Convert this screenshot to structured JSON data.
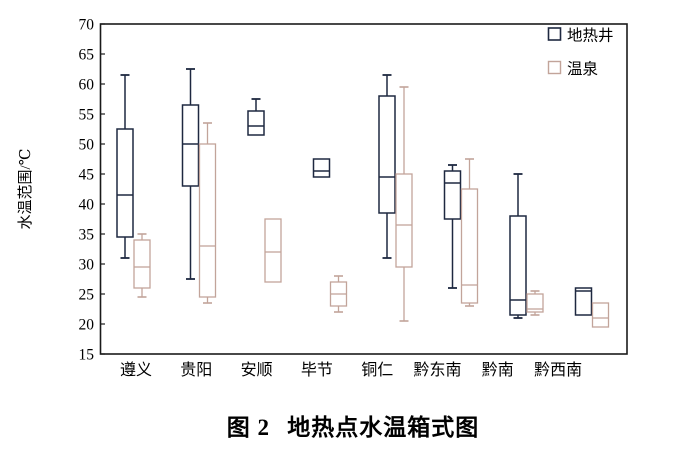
{
  "figure_caption": {
    "label": "图 2",
    "title": "地热点水温箱式图"
  },
  "chart_data": {
    "type": "boxplot",
    "title": "",
    "xlabel": "",
    "ylabel": "水温范围/℃",
    "ylim": [
      15,
      70
    ],
    "yticks": [
      15,
      20,
      25,
      30,
      35,
      40,
      45,
      50,
      55,
      60,
      65,
      70
    ],
    "grid": false,
    "legend_position": "top-right-inside",
    "axis_color": "#1a1a1a",
    "categories": [
      "遵义",
      "贵阳",
      "安顺",
      "毕节",
      "铜仁",
      "黔东南",
      "黔南",
      "黔西南"
    ],
    "series": [
      {
        "name": "地热井",
        "key": "geothermal-well",
        "color": "#1e2840",
        "boxes": [
          {
            "low": 31,
            "q1": 34.5,
            "median": 41.5,
            "q3": 52.5,
            "high": 61.5
          },
          {
            "low": 27.5,
            "q1": 43,
            "median": 50,
            "q3": 56.5,
            "high": 62.5
          },
          {
            "low": 51.5,
            "q1": 51.5,
            "median": 53,
            "q3": 55.5,
            "high": 57.5
          },
          {
            "low": 44.5,
            "q1": 44.5,
            "median": 45.5,
            "q3": 47.5,
            "high": 47.5
          },
          {
            "low": 31,
            "q1": 38.5,
            "median": 44.5,
            "q3": 58,
            "high": 61.5
          },
          {
            "low": 26,
            "q1": 37.5,
            "median": 43.5,
            "q3": 45.5,
            "high": 46.5
          },
          {
            "low": 21,
            "q1": 21.5,
            "median": 24,
            "q3": 38,
            "high": 45
          },
          {
            "low": 21.5,
            "q1": 21.5,
            "median": 25.5,
            "q3": 26,
            "high": 26
          }
        ]
      },
      {
        "name": "温泉",
        "key": "hot-spring",
        "color": "#c2a49a",
        "boxes": [
          {
            "low": 24.5,
            "q1": 26,
            "median": 29.5,
            "q3": 34,
            "high": 35
          },
          {
            "low": 23.5,
            "q1": 24.5,
            "median": 33,
            "q3": 50,
            "high": 53.5
          },
          {
            "low": 27,
            "q1": 27,
            "median": 32,
            "q3": 37.5,
            "high": 37.5
          },
          {
            "low": 22,
            "q1": 23,
            "median": 25,
            "q3": 27,
            "high": 28
          },
          {
            "low": 20.5,
            "q1": 29.5,
            "median": 36.5,
            "q3": 45,
            "high": 59.5
          },
          {
            "low": 23,
            "q1": 23.5,
            "median": 26.5,
            "q3": 42.5,
            "high": 47.5
          },
          {
            "low": 21.5,
            "q1": 22,
            "median": 22.5,
            "q3": 25,
            "high": 25.5
          },
          {
            "low": 19.5,
            "q1": 19.5,
            "median": 21,
            "q3": 23.5,
            "high": 23.5
          }
        ]
      }
    ]
  }
}
